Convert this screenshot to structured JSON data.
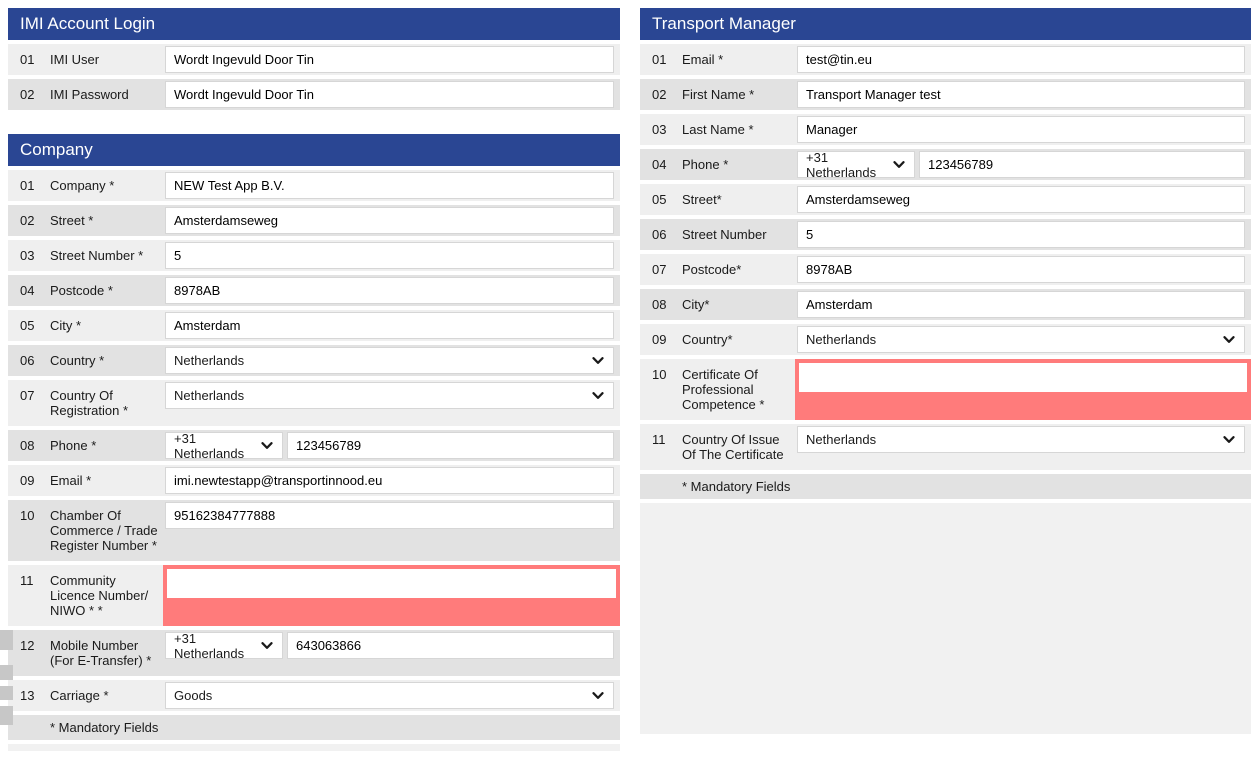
{
  "colors": {
    "header_blue": "#2a4693",
    "row_light": "#efefef",
    "row_dark": "#e2e2e2",
    "error_red": "#ff7b7b",
    "input_border": "#d6d6d6"
  },
  "panels": {
    "imi": {
      "title": "IMI Account Login",
      "rows": [
        {
          "num": "01",
          "label": "IMI User",
          "type": "text",
          "value": "Wordt Ingevuld Door Tin",
          "shade": "light"
        },
        {
          "num": "02",
          "label": "IMI Password",
          "type": "text",
          "value": "Wordt Ingevuld Door Tin",
          "shade": "dark"
        }
      ]
    },
    "company": {
      "title": "Company",
      "footnote": "* Mandatory Fields",
      "rows": [
        {
          "num": "01",
          "label": "Company *",
          "type": "text",
          "value": "NEW Test App B.V.",
          "shade": "light"
        },
        {
          "num": "02",
          "label": "Street *",
          "type": "text",
          "value": "Amsterdamseweg",
          "shade": "dark"
        },
        {
          "num": "03",
          "label": "Street Number *",
          "type": "text",
          "value": "5",
          "shade": "light"
        },
        {
          "num": "04",
          "label": "Postcode *",
          "type": "text",
          "value": "8978AB",
          "shade": "dark"
        },
        {
          "num": "05",
          "label": "City *",
          "type": "text",
          "value": "Amsterdam",
          "shade": "light"
        },
        {
          "num": "06",
          "label": "Country *",
          "type": "select",
          "value": "Netherlands",
          "shade": "dark"
        },
        {
          "num": "07",
          "label": "Country Of Registration *",
          "type": "select",
          "value": "Netherlands",
          "shade": "light"
        },
        {
          "num": "08",
          "label": "Phone *",
          "type": "phone",
          "prefix": "+31 Netherlands",
          "value": "123456789",
          "shade": "dark"
        },
        {
          "num": "09",
          "label": "Email *",
          "type": "text",
          "value": "imi.newtestapp@transportinnood.eu",
          "shade": "light"
        },
        {
          "num": "10",
          "label": "Chamber Of Commerce / Trade Register Number *",
          "type": "text",
          "value": "95162384777888",
          "shade": "dark"
        },
        {
          "num": "11",
          "label": "Community Licence Number/ NIWO * *",
          "type": "text",
          "value": "",
          "shade": "light",
          "error": true
        },
        {
          "num": "12",
          "label": "Mobile Number (For E-Transfer) *",
          "type": "phone",
          "prefix": "+31 Netherlands",
          "value": "643063866",
          "shade": "dark"
        },
        {
          "num": "13",
          "label": "Carriage *",
          "type": "select",
          "value": "Goods",
          "shade": "light"
        }
      ]
    },
    "transport_manager": {
      "title": "Transport Manager",
      "footnote": "* Mandatory Fields",
      "rows": [
        {
          "num": "01",
          "label": "Email *",
          "type": "text",
          "value": "test@tin.eu",
          "shade": "light"
        },
        {
          "num": "02",
          "label": "First Name *",
          "type": "text",
          "value": "Transport Manager test",
          "shade": "dark"
        },
        {
          "num": "03",
          "label": "Last Name *",
          "type": "text",
          "value": "Manager",
          "shade": "light"
        },
        {
          "num": "04",
          "label": "Phone *",
          "type": "phone",
          "prefix": "+31 Netherlands",
          "value": "123456789",
          "shade": "dark"
        },
        {
          "num": "05",
          "label": "Street*",
          "type": "text",
          "value": "Amsterdamseweg",
          "shade": "light"
        },
        {
          "num": "06",
          "label": "Street Number",
          "type": "text",
          "value": "5",
          "shade": "dark"
        },
        {
          "num": "07",
          "label": "Postcode*",
          "type": "text",
          "value": "8978AB",
          "shade": "light"
        },
        {
          "num": "08",
          "label": "City*",
          "type": "text",
          "value": "Amsterdam",
          "shade": "dark"
        },
        {
          "num": "09",
          "label": "Country*",
          "type": "select",
          "value": "Netherlands",
          "shade": "light"
        },
        {
          "num": "10",
          "label": "Certificate Of Professional Competence *",
          "type": "text",
          "value": "",
          "shade": "light",
          "error": true
        },
        {
          "num": "11",
          "label": "Country Of Issue Of The Certificate",
          "type": "select",
          "value": "Netherlands",
          "shade": "light"
        }
      ]
    }
  }
}
